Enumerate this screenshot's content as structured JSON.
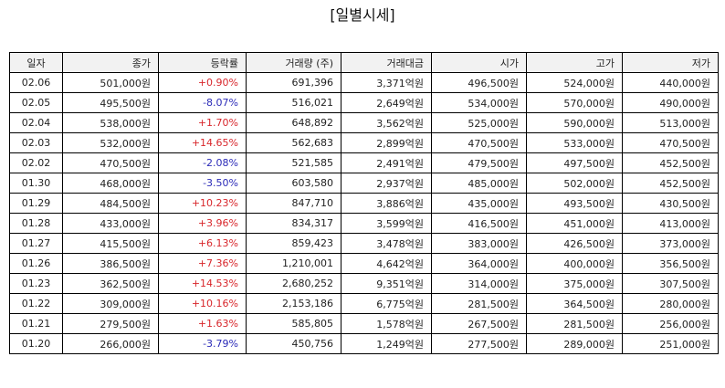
{
  "title": "[일별시세]",
  "colors": {
    "up": "#d8262b",
    "down": "#2b2bb8",
    "header_bg": "#f2f2f2",
    "border": "#000000"
  },
  "table": {
    "headers": [
      "일자",
      "종가",
      "등락률",
      "거래량 (주)",
      "거래대금",
      "시가",
      "고가",
      "저가"
    ],
    "rows": [
      {
        "date": "02.06",
        "close": "501,000원",
        "change": "+0.90%",
        "dir": "up",
        "volume": "691,396",
        "amount": "3,371억원",
        "open": "496,500원",
        "high": "524,000원",
        "low": "440,000원"
      },
      {
        "date": "02.05",
        "close": "495,500원",
        "change": "-8.07%",
        "dir": "down",
        "volume": "516,021",
        "amount": "2,649억원",
        "open": "534,000원",
        "high": "570,000원",
        "low": "490,000원"
      },
      {
        "date": "02.04",
        "close": "538,000원",
        "change": "+1.70%",
        "dir": "up",
        "volume": "648,892",
        "amount": "3,562억원",
        "open": "525,000원",
        "high": "590,000원",
        "low": "513,000원"
      },
      {
        "date": "02.03",
        "close": "532,000원",
        "change": "+14.65%",
        "dir": "up",
        "volume": "562,683",
        "amount": "2,899억원",
        "open": "470,500원",
        "high": "533,000원",
        "low": "470,500원"
      },
      {
        "date": "02.02",
        "close": "470,500원",
        "change": "-2.08%",
        "dir": "down",
        "volume": "521,585",
        "amount": "2,491억원",
        "open": "479,500원",
        "high": "497,500원",
        "low": "452,500원"
      },
      {
        "date": "01.30",
        "close": "468,000원",
        "change": "-3.50%",
        "dir": "down",
        "volume": "603,580",
        "amount": "2,937억원",
        "open": "485,000원",
        "high": "502,000원",
        "low": "452,500원"
      },
      {
        "date": "01.29",
        "close": "484,500원",
        "change": "+10.23%",
        "dir": "up",
        "volume": "847,710",
        "amount": "3,886억원",
        "open": "435,000원",
        "high": "493,500원",
        "low": "430,500원"
      },
      {
        "date": "01.28",
        "close": "433,000원",
        "change": "+3.96%",
        "dir": "up",
        "volume": "834,317",
        "amount": "3,599억원",
        "open": "416,500원",
        "high": "451,000원",
        "low": "413,000원"
      },
      {
        "date": "01.27",
        "close": "415,500원",
        "change": "+6.13%",
        "dir": "up",
        "volume": "859,423",
        "amount": "3,478억원",
        "open": "383,000원",
        "high": "426,500원",
        "low": "373,000원"
      },
      {
        "date": "01.26",
        "close": "386,500원",
        "change": "+7.36%",
        "dir": "up",
        "volume": "1,210,001",
        "amount": "4,642억원",
        "open": "364,000원",
        "high": "400,000원",
        "low": "356,500원"
      },
      {
        "date": "01.23",
        "close": "362,500원",
        "change": "+14.53%",
        "dir": "up",
        "volume": "2,680,252",
        "amount": "9,351억원",
        "open": "314,000원",
        "high": "375,000원",
        "low": "307,500원"
      },
      {
        "date": "01.22",
        "close": "309,000원",
        "change": "+10.16%",
        "dir": "up",
        "volume": "2,153,186",
        "amount": "6,775억원",
        "open": "281,500원",
        "high": "364,500원",
        "low": "280,000원"
      },
      {
        "date": "01.21",
        "close": "279,500원",
        "change": "+1.63%",
        "dir": "up",
        "volume": "585,805",
        "amount": "1,578억원",
        "open": "267,500원",
        "high": "281,500원",
        "low": "256,000원"
      },
      {
        "date": "01.20",
        "close": "266,000원",
        "change": "-3.79%",
        "dir": "down",
        "volume": "450,756",
        "amount": "1,249억원",
        "open": "277,500원",
        "high": "289,000원",
        "low": "251,000원"
      }
    ]
  }
}
